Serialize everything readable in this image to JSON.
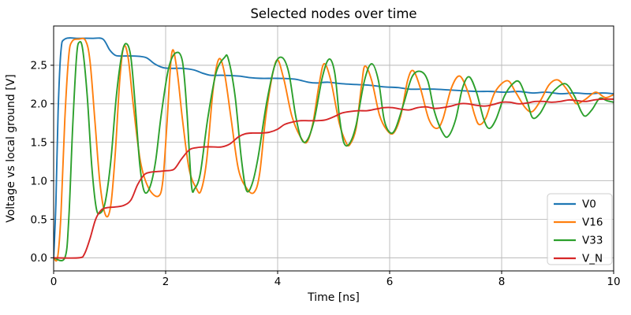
{
  "chart_data": {
    "type": "line",
    "title": "Selected nodes over time",
    "xlabel": "Time [ns]",
    "ylabel": "Voltage vs local ground [V]",
    "xlim": [
      0,
      10
    ],
    "ylim": [
      -0.17,
      3.01
    ],
    "grid": true,
    "background": "#ffffff",
    "grid_color": "#b8b8b8",
    "x_ticks": {
      "values": [
        0,
        2,
        4,
        6,
        8,
        10
      ],
      "labels": [
        "0",
        "2",
        "4",
        "6",
        "8",
        "10"
      ]
    },
    "y_ticks": {
      "values": [
        0.0,
        0.5,
        1.0,
        1.5,
        2.0,
        2.5
      ],
      "labels": [
        "0.0",
        "0.5",
        "1.0",
        "1.5",
        "2.0",
        "2.5"
      ]
    },
    "legend": {
      "position": "lower right"
    },
    "series": [
      {
        "name": "V0",
        "color": "#1f77b4",
        "points": [
          [
            0,
            0
          ],
          [
            0.04,
            0.7
          ],
          [
            0.08,
            1.9
          ],
          [
            0.13,
            2.68
          ],
          [
            0.2,
            2.84
          ],
          [
            0.45,
            2.85
          ],
          [
            0.7,
            2.85
          ],
          [
            0.88,
            2.84
          ],
          [
            1.0,
            2.7
          ],
          [
            1.1,
            2.63
          ],
          [
            1.2,
            2.62
          ],
          [
            1.45,
            2.62
          ],
          [
            1.65,
            2.6
          ],
          [
            1.8,
            2.52
          ],
          [
            1.95,
            2.47
          ],
          [
            2.1,
            2.46
          ],
          [
            2.3,
            2.46
          ],
          [
            2.5,
            2.44
          ],
          [
            2.65,
            2.4
          ],
          [
            2.8,
            2.37
          ],
          [
            3.0,
            2.37
          ],
          [
            3.3,
            2.36
          ],
          [
            3.5,
            2.34
          ],
          [
            3.7,
            2.33
          ],
          [
            4.0,
            2.33
          ],
          [
            4.3,
            2.32
          ],
          [
            4.55,
            2.28
          ],
          [
            4.7,
            2.27
          ],
          [
            4.9,
            2.28
          ],
          [
            5.15,
            2.26
          ],
          [
            5.4,
            2.25
          ],
          [
            5.65,
            2.24
          ],
          [
            5.9,
            2.22
          ],
          [
            6.15,
            2.21
          ],
          [
            6.35,
            2.19
          ],
          [
            6.55,
            2.19
          ],
          [
            6.8,
            2.19
          ],
          [
            7.05,
            2.18
          ],
          [
            7.3,
            2.17
          ],
          [
            7.55,
            2.16
          ],
          [
            7.8,
            2.16
          ],
          [
            8.05,
            2.15
          ],
          [
            8.3,
            2.16
          ],
          [
            8.55,
            2.14
          ],
          [
            8.8,
            2.15
          ],
          [
            9.05,
            2.13
          ],
          [
            9.3,
            2.14
          ],
          [
            9.55,
            2.13
          ],
          [
            9.8,
            2.14
          ],
          [
            10,
            2.13
          ]
        ]
      },
      {
        "name": "V16",
        "color": "#ff7f0e",
        "points": [
          [
            0,
            0
          ],
          [
            0.07,
            0
          ],
          [
            0.13,
            0.55
          ],
          [
            0.2,
            1.8
          ],
          [
            0.27,
            2.62
          ],
          [
            0.33,
            2.81
          ],
          [
            0.45,
            2.84
          ],
          [
            0.57,
            2.82
          ],
          [
            0.65,
            2.55
          ],
          [
            0.74,
            1.75
          ],
          [
            0.83,
            0.95
          ],
          [
            0.93,
            0.55
          ],
          [
            1.02,
            0.68
          ],
          [
            1.1,
            1.35
          ],
          [
            1.18,
            2.3
          ],
          [
            1.25,
            2.74
          ],
          [
            1.33,
            2.6
          ],
          [
            1.42,
            2.0
          ],
          [
            1.55,
            1.25
          ],
          [
            1.7,
            0.9
          ],
          [
            1.87,
            0.8
          ],
          [
            1.95,
            1.0
          ],
          [
            2.02,
            1.7
          ],
          [
            2.11,
            2.66
          ],
          [
            2.2,
            2.45
          ],
          [
            2.3,
            1.8
          ],
          [
            2.42,
            1.15
          ],
          [
            2.55,
            0.9
          ],
          [
            2.63,
            0.87
          ],
          [
            2.73,
            1.25
          ],
          [
            2.85,
            2.2
          ],
          [
            2.95,
            2.58
          ],
          [
            3.05,
            2.4
          ],
          [
            3.17,
            1.8
          ],
          [
            3.3,
            1.15
          ],
          [
            3.45,
            0.9
          ],
          [
            3.58,
            0.85
          ],
          [
            3.68,
            1.1
          ],
          [
            3.8,
            1.9
          ],
          [
            3.97,
            2.55
          ],
          [
            4.1,
            2.35
          ],
          [
            4.25,
            1.85
          ],
          [
            4.4,
            1.58
          ],
          [
            4.52,
            1.5
          ],
          [
            4.63,
            1.75
          ],
          [
            4.74,
            2.25
          ],
          [
            4.83,
            2.52
          ],
          [
            4.95,
            2.3
          ],
          [
            5.1,
            1.75
          ],
          [
            5.22,
            1.5
          ],
          [
            5.29,
            1.47
          ],
          [
            5.4,
            1.68
          ],
          [
            5.5,
            2.25
          ],
          [
            5.56,
            2.49
          ],
          [
            5.68,
            2.3
          ],
          [
            5.82,
            1.85
          ],
          [
            5.95,
            1.66
          ],
          [
            6.07,
            1.62
          ],
          [
            6.2,
            1.85
          ],
          [
            6.32,
            2.3
          ],
          [
            6.42,
            2.43
          ],
          [
            6.55,
            2.2
          ],
          [
            6.7,
            1.8
          ],
          [
            6.84,
            1.68
          ],
          [
            6.95,
            1.8
          ],
          [
            7.1,
            2.2
          ],
          [
            7.25,
            2.36
          ],
          [
            7.4,
            2.15
          ],
          [
            7.52,
            1.85
          ],
          [
            7.6,
            1.73
          ],
          [
            7.72,
            1.82
          ],
          [
            7.88,
            2.15
          ],
          [
            8.1,
            2.3
          ],
          [
            8.25,
            2.15
          ],
          [
            8.42,
            1.95
          ],
          [
            8.55,
            1.9
          ],
          [
            8.7,
            2.05
          ],
          [
            8.85,
            2.25
          ],
          [
            9.0,
            2.31
          ],
          [
            9.15,
            2.2
          ],
          [
            9.28,
            2.05
          ],
          [
            9.35,
            2.0
          ],
          [
            9.5,
            2.06
          ],
          [
            9.68,
            2.15
          ],
          [
            9.85,
            2.08
          ],
          [
            10,
            2.12
          ]
        ]
      },
      {
        "name": "V33",
        "color": "#2ca02c",
        "points": [
          [
            0,
            0
          ],
          [
            0.2,
            0
          ],
          [
            0.27,
            0.5
          ],
          [
            0.34,
            1.7
          ],
          [
            0.41,
            2.62
          ],
          [
            0.46,
            2.8
          ],
          [
            0.52,
            2.7
          ],
          [
            0.6,
            2.1
          ],
          [
            0.68,
            1.2
          ],
          [
            0.76,
            0.65
          ],
          [
            0.83,
            0.58
          ],
          [
            0.92,
            0.72
          ],
          [
            1.02,
            1.25
          ],
          [
            1.12,
            2.1
          ],
          [
            1.22,
            2.65
          ],
          [
            1.3,
            2.78
          ],
          [
            1.38,
            2.6
          ],
          [
            1.46,
            1.95
          ],
          [
            1.54,
            1.2
          ],
          [
            1.62,
            0.86
          ],
          [
            1.72,
            0.92
          ],
          [
            1.82,
            1.25
          ],
          [
            1.92,
            1.85
          ],
          [
            2.05,
            2.45
          ],
          [
            2.18,
            2.66
          ],
          [
            2.3,
            2.55
          ],
          [
            2.38,
            1.9
          ],
          [
            2.46,
            0.95
          ],
          [
            2.52,
            0.9
          ],
          [
            2.62,
            1.1
          ],
          [
            2.75,
            1.8
          ],
          [
            2.9,
            2.4
          ],
          [
            3.05,
            2.6
          ],
          [
            3.12,
            2.58
          ],
          [
            3.24,
            2.1
          ],
          [
            3.35,
            1.3
          ],
          [
            3.44,
            0.88
          ],
          [
            3.54,
            0.95
          ],
          [
            3.65,
            1.3
          ],
          [
            3.8,
            2.0
          ],
          [
            3.95,
            2.5
          ],
          [
            4.08,
            2.6
          ],
          [
            4.2,
            2.4
          ],
          [
            4.32,
            1.85
          ],
          [
            4.42,
            1.55
          ],
          [
            4.52,
            1.52
          ],
          [
            4.65,
            1.78
          ],
          [
            4.8,
            2.35
          ],
          [
            4.92,
            2.58
          ],
          [
            5.02,
            2.4
          ],
          [
            5.1,
            1.85
          ],
          [
            5.18,
            1.5
          ],
          [
            5.28,
            1.48
          ],
          [
            5.4,
            1.72
          ],
          [
            5.55,
            2.3
          ],
          [
            5.68,
            2.52
          ],
          [
            5.8,
            2.3
          ],
          [
            5.9,
            1.8
          ],
          [
            6.0,
            1.63
          ],
          [
            6.1,
            1.67
          ],
          [
            6.25,
            2.0
          ],
          [
            6.4,
            2.35
          ],
          [
            6.55,
            2.42
          ],
          [
            6.68,
            2.3
          ],
          [
            6.8,
            1.9
          ],
          [
            6.95,
            1.62
          ],
          [
            7.05,
            1.58
          ],
          [
            7.18,
            1.8
          ],
          [
            7.3,
            2.2
          ],
          [
            7.42,
            2.35
          ],
          [
            7.55,
            2.15
          ],
          [
            7.68,
            1.8
          ],
          [
            7.78,
            1.68
          ],
          [
            7.9,
            1.8
          ],
          [
            8.05,
            2.1
          ],
          [
            8.2,
            2.26
          ],
          [
            8.32,
            2.28
          ],
          [
            8.45,
            2.05
          ],
          [
            8.55,
            1.82
          ],
          [
            8.68,
            1.87
          ],
          [
            8.82,
            2.05
          ],
          [
            8.95,
            2.18
          ],
          [
            9.14,
            2.26
          ],
          [
            9.3,
            2.1
          ],
          [
            9.42,
            1.9
          ],
          [
            9.5,
            1.84
          ],
          [
            9.62,
            1.93
          ],
          [
            9.75,
            2.07
          ],
          [
            9.88,
            2.04
          ],
          [
            10,
            2.02
          ]
        ]
      },
      {
        "name": "V_N",
        "color": "#d62728",
        "points": [
          [
            0,
            0
          ],
          [
            0.45,
            0
          ],
          [
            0.55,
            0.05
          ],
          [
            0.65,
            0.25
          ],
          [
            0.75,
            0.5
          ],
          [
            0.85,
            0.62
          ],
          [
            0.95,
            0.65
          ],
          [
            1.1,
            0.66
          ],
          [
            1.25,
            0.68
          ],
          [
            1.38,
            0.75
          ],
          [
            1.5,
            0.95
          ],
          [
            1.62,
            1.08
          ],
          [
            1.72,
            1.11
          ],
          [
            1.85,
            1.12
          ],
          [
            2.0,
            1.13
          ],
          [
            2.15,
            1.15
          ],
          [
            2.28,
            1.28
          ],
          [
            2.42,
            1.4
          ],
          [
            2.55,
            1.43
          ],
          [
            2.7,
            1.44
          ],
          [
            2.85,
            1.44
          ],
          [
            3.0,
            1.44
          ],
          [
            3.15,
            1.48
          ],
          [
            3.3,
            1.57
          ],
          [
            3.42,
            1.61
          ],
          [
            3.55,
            1.62
          ],
          [
            3.7,
            1.62
          ],
          [
            3.85,
            1.63
          ],
          [
            4.0,
            1.67
          ],
          [
            4.12,
            1.73
          ],
          [
            4.25,
            1.76
          ],
          [
            4.4,
            1.78
          ],
          [
            4.55,
            1.78
          ],
          [
            4.7,
            1.78
          ],
          [
            4.85,
            1.79
          ],
          [
            5.0,
            1.83
          ],
          [
            5.15,
            1.88
          ],
          [
            5.3,
            1.9
          ],
          [
            5.45,
            1.91
          ],
          [
            5.6,
            1.91
          ],
          [
            5.75,
            1.93
          ],
          [
            5.9,
            1.95
          ],
          [
            6.05,
            1.95
          ],
          [
            6.2,
            1.93
          ],
          [
            6.35,
            1.92
          ],
          [
            6.5,
            1.95
          ],
          [
            6.65,
            1.96
          ],
          [
            6.8,
            1.94
          ],
          [
            6.95,
            1.95
          ],
          [
            7.1,
            1.97
          ],
          [
            7.25,
            2.0
          ],
          [
            7.4,
            2.0
          ],
          [
            7.55,
            1.98
          ],
          [
            7.7,
            1.97
          ],
          [
            7.85,
            1.99
          ],
          [
            8.0,
            2.02
          ],
          [
            8.15,
            2.02
          ],
          [
            8.3,
            2.0
          ],
          [
            8.45,
            2.01
          ],
          [
            8.6,
            2.03
          ],
          [
            8.75,
            2.03
          ],
          [
            8.9,
            2.02
          ],
          [
            9.05,
            2.03
          ],
          [
            9.2,
            2.05
          ],
          [
            9.35,
            2.04
          ],
          [
            9.5,
            2.03
          ],
          [
            9.65,
            2.05
          ],
          [
            9.8,
            2.06
          ],
          [
            10,
            2.06
          ]
        ]
      }
    ]
  }
}
